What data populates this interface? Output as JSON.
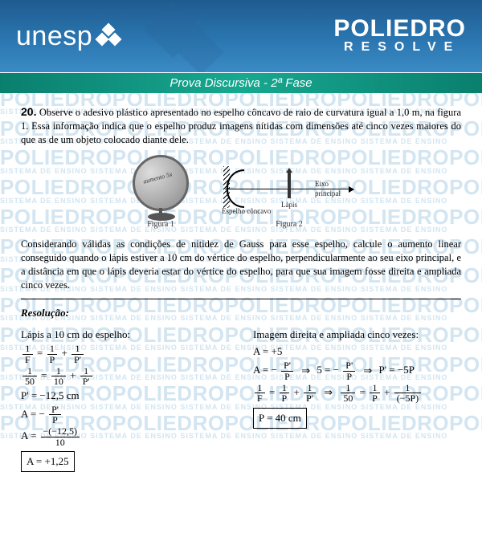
{
  "header": {
    "brand_left": "unesp",
    "brand_right_title": "POLIEDRO",
    "brand_right_sub": "RESOLVE",
    "banner": "Prova Discursiva - 2ª Fase"
  },
  "watermark": {
    "main": "POLIEDRO",
    "sub": "SISTEMA DE ENSINO"
  },
  "question": {
    "number": "20.",
    "p1": "Observe o adesivo plástico apresentado no espelho côncavo de raio de curvatura igual a 1,0 m, na figura 1. Essa informação indica que o espelho produz imagens nítidas com dimensões até cinco vezes maiores do que as de um objeto colocado diante dele.",
    "mirror_sticker": "aumento 5x",
    "fig1_caption": "Figura 1",
    "fig1_label_mirror": "Espelho côncavo",
    "fig2_caption": "Figura 2",
    "fig2_label_pencil": "Lápis",
    "fig2_label_axis": "Eixo principal",
    "p2": "Considerando válidas as condições de nitidez de Gauss para esse espelho, calcule o aumento linear conseguido quando o lápis estiver a 10 cm do vértice do espelho, perpendicularmente ao seu eixo principal, e a distância em que o lápis deveria estar do vértice do espelho, para que sua imagem fosse direita e ampliada cinco vezes."
  },
  "resolution": {
    "title": "Resolução:",
    "left": {
      "heading": "Lápis a 10 cm do espelho:",
      "eq1": {
        "lhs_n": "1",
        "lhs_d": "F",
        "r1_n": "1",
        "r1_d": "P",
        "r2_n": "1",
        "r2_d": "P'"
      },
      "eq2": {
        "lhs_n": "1",
        "lhs_d": "50",
        "r1_n": "1",
        "r1_d": "10",
        "r2_n": "1",
        "r2_d": "P'"
      },
      "pprime": "P' = −12,5 cm",
      "A_def": {
        "lhs": "A = −",
        "n": "P'",
        "d": "P"
      },
      "A_calc": {
        "lhs": "A =",
        "n": "−(−12,5)",
        "d": "10"
      },
      "A_result": "A = +1,25"
    },
    "right": {
      "heading": "Imagem direita e ampliada cinco vezes:",
      "A5": "A = +5",
      "derive": {
        "lhs": "A = −",
        "n1": "P'",
        "d1": "P",
        "mid": "5 = −",
        "n2": "P'",
        "d2": "P",
        "res": "P' = −5P"
      },
      "eq": {
        "l_n": "1",
        "l_d": "F",
        "m1_n": "1",
        "m1_d": "P",
        "m2_n": "1",
        "m2_d": "P'",
        "r0_n": "1",
        "r0_d": "50",
        "r1_n": "1",
        "r1_d": "P",
        "r2_n": "1",
        "r2_d": "(−5P)"
      },
      "P_result": "P = 40 cm"
    }
  },
  "colors": {
    "header_grad_top": "#1e5b8f",
    "header_grad_bottom": "#3a8bc5",
    "banner": "#0a7f6e",
    "watermark": "#d2e5f1",
    "text": "#000000"
  }
}
